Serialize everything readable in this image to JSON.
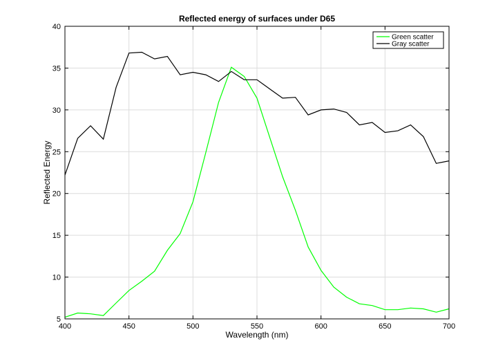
{
  "chart_data": {
    "type": "line",
    "title": "Reflected energy of surfaces under D65",
    "xlabel": "Wavelength (nm)",
    "ylabel": "Reflected Energy",
    "xlim": [
      400,
      700
    ],
    "ylim": [
      5,
      40
    ],
    "xticks": [
      400,
      450,
      500,
      550,
      600,
      650,
      700
    ],
    "yticks": [
      5,
      10,
      15,
      20,
      25,
      30,
      35,
      40
    ],
    "grid": true,
    "legend_position": "top-right",
    "x": [
      400,
      410,
      420,
      430,
      440,
      450,
      460,
      470,
      480,
      490,
      500,
      510,
      520,
      530,
      540,
      550,
      560,
      570,
      580,
      590,
      600,
      610,
      620,
      630,
      640,
      650,
      660,
      670,
      680,
      690,
      700
    ],
    "series": [
      {
        "name": "Green scatter",
        "color": "#00ff00",
        "values": [
          5.2,
          5.7,
          5.6,
          5.4,
          6.9,
          8.4,
          9.5,
          10.7,
          13.2,
          15.2,
          19.0,
          24.9,
          30.9,
          35.1,
          34.0,
          31.4,
          26.7,
          22.0,
          18.0,
          13.6,
          10.8,
          8.8,
          7.6,
          6.8,
          6.6,
          6.1,
          6.1,
          6.3,
          6.2,
          5.8,
          6.2
        ]
      },
      {
        "name": "Gray scatter",
        "color": "#000000",
        "values": [
          22.2,
          26.6,
          28.1,
          26.5,
          32.7,
          36.8,
          36.9,
          36.1,
          36.4,
          34.2,
          34.5,
          34.2,
          33.4,
          34.6,
          33.6,
          33.6,
          32.5,
          31.4,
          31.5,
          29.4,
          30.0,
          30.1,
          29.7,
          28.2,
          28.5,
          27.3,
          27.5,
          28.2,
          26.8,
          23.6,
          23.9
        ]
      }
    ]
  }
}
